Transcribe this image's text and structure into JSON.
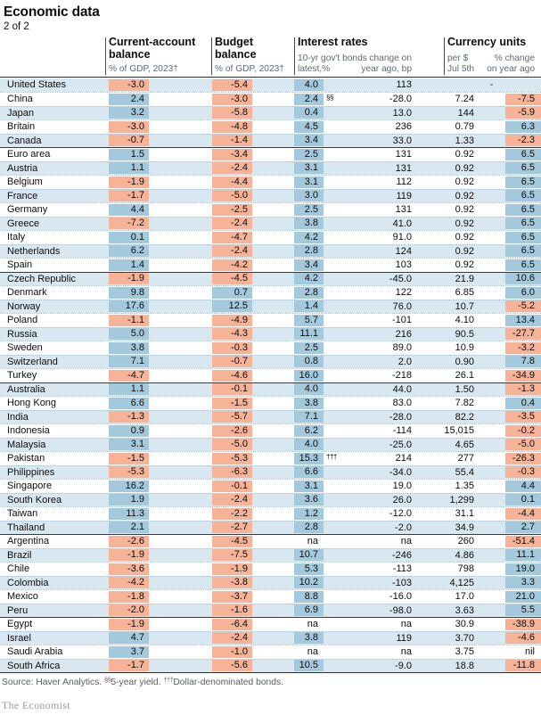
{
  "page": {
    "title": "Economic data",
    "subtitle": "2 of 2"
  },
  "colors": {
    "stripe_blue": "#d8e7f0",
    "highlight_blue": "#a4c9dd",
    "highlight_salmon": "#f6b398",
    "rule_dark": "#2e2e2e",
    "sub_gray": "#5f6a72"
  },
  "header": {
    "group1": {
      "title": "Current-account balance",
      "sub": "% of GDP, 2023†"
    },
    "group2": {
      "title": "Budget balance",
      "sub": "% of GDP, 2023†"
    },
    "group3": {
      "title": "Interest rates",
      "sub_left1": "10-yr gov't bonds",
      "sub_left2": "latest,%",
      "sub_right1": "change on",
      "sub_right2": "year ago, bp"
    },
    "group4": {
      "title": "Currency units",
      "sub_left1": "per $",
      "sub_left2": "Jul 5th",
      "sub_right1": "% change",
      "sub_right2": "on year ago"
    }
  },
  "rows": [
    {
      "name": "United States",
      "ca": {
        "v": "-3.0",
        "h": "r"
      },
      "bb": {
        "v": "-5.4",
        "h": "r"
      },
      "rate": {
        "v": "4.0",
        "h": "b"
      },
      "note": "",
      "chg": "113",
      "fx": "-",
      "pct": {
        "v": "",
        "h": ""
      },
      "divider": false
    },
    {
      "name": "China",
      "ca": {
        "v": "2.4",
        "h": "b"
      },
      "bb": {
        "v": "-3.0",
        "h": "r"
      },
      "rate": {
        "v": "2.4",
        "h": "b"
      },
      "note": "§§",
      "chg": "-28.0",
      "fx": "7.24",
      "pct": {
        "v": "-7.5",
        "h": "r"
      },
      "divider": false
    },
    {
      "name": "Japan",
      "ca": {
        "v": "3.2",
        "h": "b"
      },
      "bb": {
        "v": "-5.8",
        "h": "r"
      },
      "rate": {
        "v": "0.4",
        "h": "b"
      },
      "note": "",
      "chg": "13.0",
      "fx": "144",
      "pct": {
        "v": "-5.9",
        "h": "r"
      },
      "divider": false
    },
    {
      "name": "Britain",
      "ca": {
        "v": "-3.0",
        "h": "r"
      },
      "bb": {
        "v": "-4.8",
        "h": "r"
      },
      "rate": {
        "v": "4.5",
        "h": "b"
      },
      "note": "",
      "chg": "236",
      "fx": "0.79",
      "pct": {
        "v": "6.3",
        "h": "b"
      },
      "divider": false
    },
    {
      "name": "Canada",
      "ca": {
        "v": "-0.7",
        "h": "r"
      },
      "bb": {
        "v": "-1.4",
        "h": "r"
      },
      "rate": {
        "v": "3.4",
        "h": "b"
      },
      "note": "",
      "chg": "33.0",
      "fx": "1.33",
      "pct": {
        "v": "-2.3",
        "h": "r"
      },
      "divider": false
    },
    {
      "name": "Euro area",
      "ca": {
        "v": "1.5",
        "h": "b"
      },
      "bb": {
        "v": "-3.4",
        "h": "r"
      },
      "rate": {
        "v": "2.5",
        "h": "b"
      },
      "note": "",
      "chg": "131",
      "fx": "0.92",
      "pct": {
        "v": "6.5",
        "h": "b"
      },
      "divider": true
    },
    {
      "name": "Austria",
      "ca": {
        "v": "1.1",
        "h": "b"
      },
      "bb": {
        "v": "-2.4",
        "h": "r"
      },
      "rate": {
        "v": "3.1",
        "h": "b"
      },
      "note": "",
      "chg": "131",
      "fx": "0.92",
      "pct": {
        "v": "6.5",
        "h": "b"
      },
      "divider": false
    },
    {
      "name": "Belgium",
      "ca": {
        "v": "-1.9",
        "h": "r"
      },
      "bb": {
        "v": "-4.4",
        "h": "r"
      },
      "rate": {
        "v": "3.1",
        "h": "b"
      },
      "note": "",
      "chg": "112",
      "fx": "0.92",
      "pct": {
        "v": "6.5",
        "h": "b"
      },
      "divider": false
    },
    {
      "name": "France",
      "ca": {
        "v": "-1.7",
        "h": "r"
      },
      "bb": {
        "v": "-5.0",
        "h": "r"
      },
      "rate": {
        "v": "3.0",
        "h": "b"
      },
      "note": "",
      "chg": "119",
      "fx": "0.92",
      "pct": {
        "v": "6.5",
        "h": "b"
      },
      "divider": false
    },
    {
      "name": "Germany",
      "ca": {
        "v": "4.4",
        "h": "b"
      },
      "bb": {
        "v": "-2.5",
        "h": "r"
      },
      "rate": {
        "v": "2.5",
        "h": "b"
      },
      "note": "",
      "chg": "131",
      "fx": "0.92",
      "pct": {
        "v": "6.5",
        "h": "b"
      },
      "divider": false
    },
    {
      "name": "Greece",
      "ca": {
        "v": "-7.2",
        "h": "r"
      },
      "bb": {
        "v": "-2.4",
        "h": "r"
      },
      "rate": {
        "v": "3.8",
        "h": "b"
      },
      "note": "",
      "chg": "41.0",
      "fx": "0.92",
      "pct": {
        "v": "6.5",
        "h": "b"
      },
      "divider": false
    },
    {
      "name": "Italy",
      "ca": {
        "v": "0.1",
        "h": "b"
      },
      "bb": {
        "v": "-4.7",
        "h": "r"
      },
      "rate": {
        "v": "4.2",
        "h": "b"
      },
      "note": "",
      "chg": "91.0",
      "fx": "0.92",
      "pct": {
        "v": "6.5",
        "h": "b"
      },
      "divider": false
    },
    {
      "name": "Netherlands",
      "ca": {
        "v": "6.2",
        "h": "b"
      },
      "bb": {
        "v": "-2.4",
        "h": "r"
      },
      "rate": {
        "v": "2.8",
        "h": "b"
      },
      "note": "",
      "chg": "124",
      "fx": "0.92",
      "pct": {
        "v": "6.5",
        "h": "b"
      },
      "divider": false
    },
    {
      "name": "Spain",
      "ca": {
        "v": "1.4",
        "h": "b"
      },
      "bb": {
        "v": "-4.2",
        "h": "r"
      },
      "rate": {
        "v": "3.4",
        "h": "b"
      },
      "note": "",
      "chg": "103",
      "fx": "0.92",
      "pct": {
        "v": "6.5",
        "h": "b"
      },
      "divider": false
    },
    {
      "name": "Czech Republic",
      "ca": {
        "v": "-1.9",
        "h": "r"
      },
      "bb": {
        "v": "-4.5",
        "h": "r"
      },
      "rate": {
        "v": "4.2",
        "h": "b"
      },
      "note": "",
      "chg": "-45.0",
      "fx": "21.9",
      "pct": {
        "v": "10.6",
        "h": "b"
      },
      "divider": true
    },
    {
      "name": "Denmark",
      "ca": {
        "v": "9.8",
        "h": "b"
      },
      "bb": {
        "v": "0.7",
        "h": "b"
      },
      "rate": {
        "v": "2.8",
        "h": "b"
      },
      "note": "",
      "chg": "122",
      "fx": "6.85",
      "pct": {
        "v": "6.0",
        "h": "b"
      },
      "divider": false
    },
    {
      "name": "Norway",
      "ca": {
        "v": "17.6",
        "h": "b"
      },
      "bb": {
        "v": "12.5",
        "h": "b"
      },
      "rate": {
        "v": "1.4",
        "h": "b"
      },
      "note": "",
      "chg": "76.0",
      "fx": "10.7",
      "pct": {
        "v": "-5.2",
        "h": "r"
      },
      "divider": false
    },
    {
      "name": "Poland",
      "ca": {
        "v": "-1.1",
        "h": "r"
      },
      "bb": {
        "v": "-4.9",
        "h": "r"
      },
      "rate": {
        "v": "5.7",
        "h": "b"
      },
      "note": "",
      "chg": "-101",
      "fx": "4.10",
      "pct": {
        "v": "13.4",
        "h": "b"
      },
      "divider": false
    },
    {
      "name": "Russia",
      "ca": {
        "v": "5.0",
        "h": "b"
      },
      "bb": {
        "v": "-4.3",
        "h": "r"
      },
      "rate": {
        "v": "11.1",
        "h": "b"
      },
      "note": "",
      "chg": "216",
      "fx": "90.5",
      "pct": {
        "v": "-27.7",
        "h": "r"
      },
      "divider": false
    },
    {
      "name": "Sweden",
      "ca": {
        "v": "3.8",
        "h": "b"
      },
      "bb": {
        "v": "-0.3",
        "h": "r"
      },
      "rate": {
        "v": "2.5",
        "h": "b"
      },
      "note": "",
      "chg": "89.0",
      "fx": "10.9",
      "pct": {
        "v": "-3.2",
        "h": "r"
      },
      "divider": false
    },
    {
      "name": "Switzerland",
      "ca": {
        "v": "7.1",
        "h": "b"
      },
      "bb": {
        "v": "-0.7",
        "h": "r"
      },
      "rate": {
        "v": "0.8",
        "h": "b"
      },
      "note": "",
      "chg": "2.0",
      "fx": "0.90",
      "pct": {
        "v": "7.8",
        "h": "b"
      },
      "divider": false
    },
    {
      "name": "Turkey",
      "ca": {
        "v": "-4.7",
        "h": "r"
      },
      "bb": {
        "v": "-4.6",
        "h": "r"
      },
      "rate": {
        "v": "16.0",
        "h": "b"
      },
      "note": "",
      "chg": "-218",
      "fx": "26.1",
      "pct": {
        "v": "-34.9",
        "h": "r"
      },
      "divider": false
    },
    {
      "name": "Australia",
      "ca": {
        "v": "1.1",
        "h": "b"
      },
      "bb": {
        "v": "-0.1",
        "h": "r"
      },
      "rate": {
        "v": "4.0",
        "h": "b"
      },
      "note": "",
      "chg": "44.0",
      "fx": "1.50",
      "pct": {
        "v": "-1.3",
        "h": "r"
      },
      "divider": true
    },
    {
      "name": "Hong Kong",
      "ca": {
        "v": "6.6",
        "h": "b"
      },
      "bb": {
        "v": "-1.5",
        "h": "r"
      },
      "rate": {
        "v": "3.8",
        "h": "b"
      },
      "note": "",
      "chg": "83.0",
      "fx": "7.82",
      "pct": {
        "v": "0.4",
        "h": "b"
      },
      "divider": false
    },
    {
      "name": "India",
      "ca": {
        "v": "-1.3",
        "h": "r"
      },
      "bb": {
        "v": "-5.7",
        "h": "r"
      },
      "rate": {
        "v": "7.1",
        "h": "b"
      },
      "note": "",
      "chg": "-28.0",
      "fx": "82.2",
      "pct": {
        "v": "-3.5",
        "h": "r"
      },
      "divider": false
    },
    {
      "name": "Indonesia",
      "ca": {
        "v": "0.9",
        "h": "b"
      },
      "bb": {
        "v": "-2.6",
        "h": "r"
      },
      "rate": {
        "v": "6.2",
        "h": "b"
      },
      "note": "",
      "chg": "-114",
      "fx": "15,015",
      "pct": {
        "v": "-0.2",
        "h": "r"
      },
      "divider": false
    },
    {
      "name": "Malaysia",
      "ca": {
        "v": "3.1",
        "h": "b"
      },
      "bb": {
        "v": "-5.0",
        "h": "r"
      },
      "rate": {
        "v": "4.0",
        "h": "b"
      },
      "note": "",
      "chg": "-25.0",
      "fx": "4.65",
      "pct": {
        "v": "-5.0",
        "h": "r"
      },
      "divider": false
    },
    {
      "name": "Pakistan",
      "ca": {
        "v": "-1.5",
        "h": "r"
      },
      "bb": {
        "v": "-5.3",
        "h": "r"
      },
      "rate": {
        "v": "15.3",
        "h": "b"
      },
      "note": "†††",
      "chg": "214",
      "fx": "277",
      "pct": {
        "v": "-26.3",
        "h": "r"
      },
      "divider": false
    },
    {
      "name": "Philippines",
      "ca": {
        "v": "-5.3",
        "h": "r"
      },
      "bb": {
        "v": "-6.3",
        "h": "r"
      },
      "rate": {
        "v": "6.6",
        "h": "b"
      },
      "note": "",
      "chg": "-34.0",
      "fx": "55.4",
      "pct": {
        "v": "-0.3",
        "h": "r"
      },
      "divider": false
    },
    {
      "name": "Singapore",
      "ca": {
        "v": "16.2",
        "h": "b"
      },
      "bb": {
        "v": "-0.1",
        "h": "r"
      },
      "rate": {
        "v": "3.1",
        "h": "b"
      },
      "note": "",
      "chg": "19.0",
      "fx": "1.35",
      "pct": {
        "v": "4.4",
        "h": "b"
      },
      "divider": false
    },
    {
      "name": "South Korea",
      "ca": {
        "v": "1.9",
        "h": "b"
      },
      "bb": {
        "v": "-2.4",
        "h": "r"
      },
      "rate": {
        "v": "3.6",
        "h": "b"
      },
      "note": "",
      "chg": "26.0",
      "fx": "1,299",
      "pct": {
        "v": "0.1",
        "h": "b"
      },
      "divider": false
    },
    {
      "name": "Taiwan",
      "ca": {
        "v": "11.3",
        "h": "b"
      },
      "bb": {
        "v": "-2.2",
        "h": "r"
      },
      "rate": {
        "v": "1.2",
        "h": "b"
      },
      "note": "",
      "chg": "-12.0",
      "fx": "31.1",
      "pct": {
        "v": "-4.4",
        "h": "r"
      },
      "divider": false
    },
    {
      "name": "Thailand",
      "ca": {
        "v": "2.1",
        "h": "b"
      },
      "bb": {
        "v": "-2.7",
        "h": "r"
      },
      "rate": {
        "v": "2.8",
        "h": "b"
      },
      "note": "",
      "chg": "-2.0",
      "fx": "34.9",
      "pct": {
        "v": "2.7",
        "h": "b"
      },
      "divider": false
    },
    {
      "name": "Argentina",
      "ca": {
        "v": "-2.6",
        "h": "r"
      },
      "bb": {
        "v": "-4.5",
        "h": "r"
      },
      "rate": {
        "v": "na",
        "h": ""
      },
      "note": "",
      "chg": "na",
      "fx": "260",
      "pct": {
        "v": "-51.4",
        "h": "r"
      },
      "divider": true
    },
    {
      "name": "Brazil",
      "ca": {
        "v": "-1.9",
        "h": "r"
      },
      "bb": {
        "v": "-7.5",
        "h": "r"
      },
      "rate": {
        "v": "10.7",
        "h": "b"
      },
      "note": "",
      "chg": "-246",
      "fx": "4.86",
      "pct": {
        "v": "11.1",
        "h": "b"
      },
      "divider": false
    },
    {
      "name": "Chile",
      "ca": {
        "v": "-3.6",
        "h": "r"
      },
      "bb": {
        "v": "-1.9",
        "h": "r"
      },
      "rate": {
        "v": "5.3",
        "h": "b"
      },
      "note": "",
      "chg": "-113",
      "fx": "798",
      "pct": {
        "v": "19.0",
        "h": "b"
      },
      "divider": false
    },
    {
      "name": "Colombia",
      "ca": {
        "v": "-4.2",
        "h": "r"
      },
      "bb": {
        "v": "-3.8",
        "h": "r"
      },
      "rate": {
        "v": "10.2",
        "h": "b"
      },
      "note": "",
      "chg": "-103",
      "fx": "4,125",
      "pct": {
        "v": "3.3",
        "h": "b"
      },
      "divider": false
    },
    {
      "name": "Mexico",
      "ca": {
        "v": "-1.8",
        "h": "r"
      },
      "bb": {
        "v": "-3.7",
        "h": "r"
      },
      "rate": {
        "v": "8.8",
        "h": "b"
      },
      "note": "",
      "chg": "-16.0",
      "fx": "17.0",
      "pct": {
        "v": "21.0",
        "h": "b"
      },
      "divider": false
    },
    {
      "name": "Peru",
      "ca": {
        "v": "-2.0",
        "h": "r"
      },
      "bb": {
        "v": "-1.6",
        "h": "r"
      },
      "rate": {
        "v": "6.9",
        "h": "b"
      },
      "note": "",
      "chg": "-98.0",
      "fx": "3.63",
      "pct": {
        "v": "5.5",
        "h": "b"
      },
      "divider": false
    },
    {
      "name": "Egypt",
      "ca": {
        "v": "-1.9",
        "h": "r"
      },
      "bb": {
        "v": "-6.4",
        "h": "r"
      },
      "rate": {
        "v": "na",
        "h": ""
      },
      "note": "",
      "chg": "na",
      "fx": "30.9",
      "pct": {
        "v": "-38.9",
        "h": "r"
      },
      "divider": true
    },
    {
      "name": "Israel",
      "ca": {
        "v": "4.7",
        "h": "b"
      },
      "bb": {
        "v": "-2.4",
        "h": "r"
      },
      "rate": {
        "v": "3.8",
        "h": "b"
      },
      "note": "",
      "chg": "119",
      "fx": "3.70",
      "pct": {
        "v": "-4.6",
        "h": "r"
      },
      "divider": false
    },
    {
      "name": "Saudi Arabia",
      "ca": {
        "v": "3.7",
        "h": "b"
      },
      "bb": {
        "v": "-1.0",
        "h": "r"
      },
      "rate": {
        "v": "na",
        "h": ""
      },
      "note": "",
      "chg": "na",
      "fx": "3.75",
      "pct": {
        "v": "nil",
        "h": ""
      },
      "divider": false
    },
    {
      "name": "South Africa",
      "ca": {
        "v": "-1.7",
        "h": "r"
      },
      "bb": {
        "v": "-5.6",
        "h": "r"
      },
      "rate": {
        "v": "10.5",
        "h": "b"
      },
      "note": "",
      "chg": "-9.0",
      "fx": "18.8",
      "pct": {
        "v": "-11.8",
        "h": "r"
      },
      "divider": false
    }
  ],
  "footer": {
    "source_prefix": "Source: Haver Analytics.",
    "fn1_sym": "§§",
    "fn1_text": "5-year yield.",
    "fn2_sym": "†††",
    "fn2_text": "Dollar-denominated bonds.",
    "brand": "The Economist"
  }
}
